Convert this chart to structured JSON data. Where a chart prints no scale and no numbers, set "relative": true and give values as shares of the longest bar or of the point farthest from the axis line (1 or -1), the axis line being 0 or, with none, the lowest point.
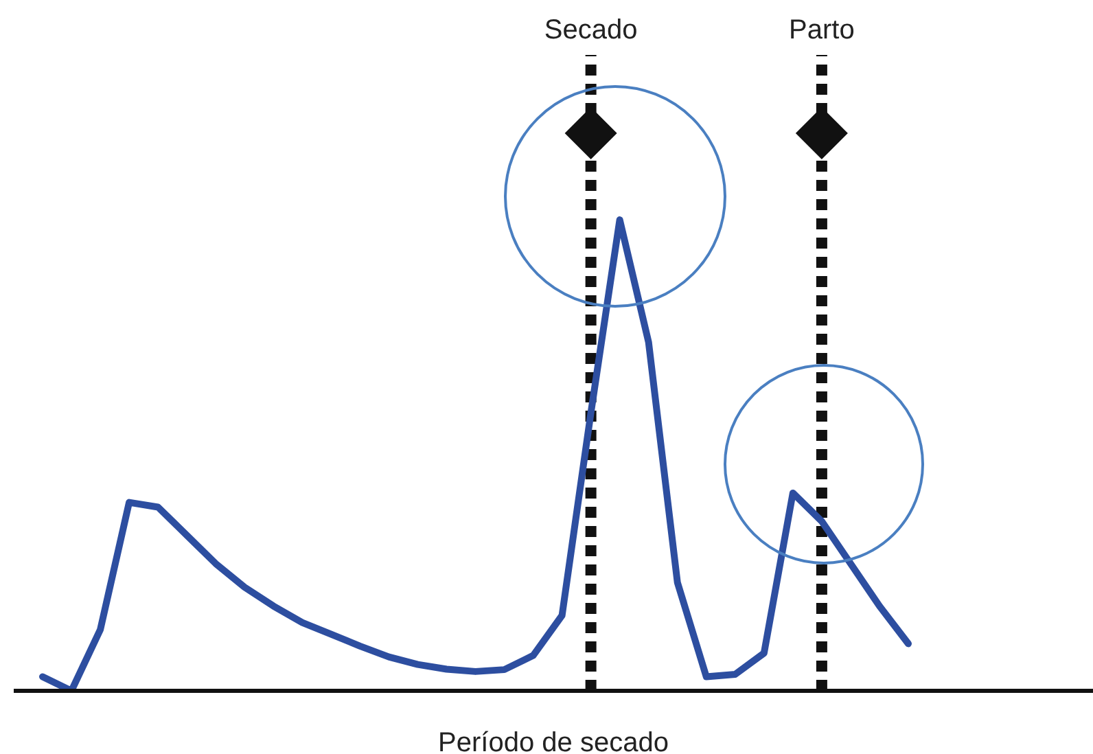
{
  "chart_data": {
    "type": "line",
    "relative": true,
    "xlabel": "Período de secado",
    "marker": "none",
    "line_style": "solid",
    "categories": [
      null,
      null,
      null,
      null,
      null,
      null,
      null,
      null,
      null,
      null,
      null,
      null,
      null,
      null,
      null,
      null,
      null,
      null,
      null,
      null,
      null,
      null,
      null,
      null,
      null,
      null,
      null,
      null,
      null,
      null,
      null
    ],
    "series": [
      {
        "color": "#2d4ea0",
        "values": [
          0.03,
          0,
          0.13,
          0.4,
          0.39,
          0.33,
          0.27,
          0.22,
          0.18,
          0.145,
          0.12,
          0.095,
          0.072,
          0.056,
          0.046,
          0.041,
          0.045,
          0.075,
          0.16,
          0.59,
          1,
          0.74,
          0.23,
          0.03,
          0.035,
          0.08,
          0.42,
          0.36,
          0.27,
          0.18,
          0.1
        ]
      }
    ],
    "annotations": [
      "Secado",
      "Parto"
    ]
  }
}
